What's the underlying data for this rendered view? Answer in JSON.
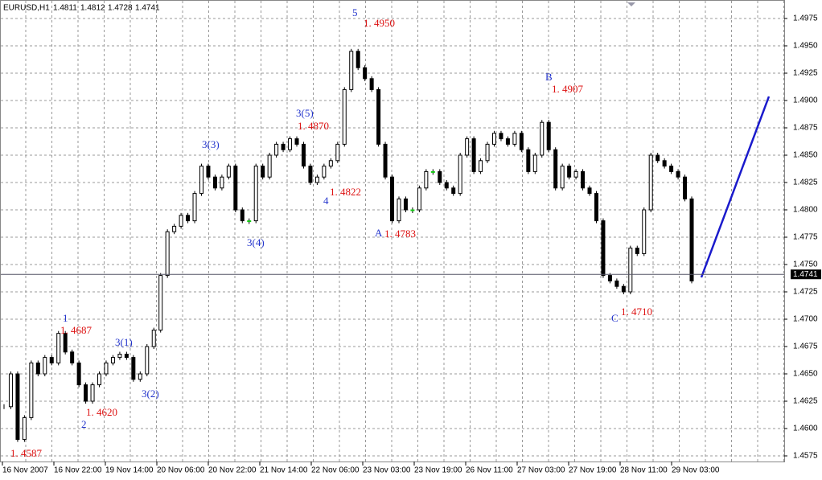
{
  "chart_data": {
    "type": "candlestick",
    "title": "EURUSD,H1",
    "ohlc": [
      1.4811,
      1.4812,
      1.4728,
      1.4741
    ],
    "values": [
      1.462,
      1.465,
      1.459,
      1.461,
      1.466,
      1.465,
      1.4665,
      1.466,
      1.4687,
      1.467,
      1.466,
      1.464,
      1.4625,
      1.464,
      1.465,
      1.466,
      1.4665,
      1.4668,
      1.4665,
      1.4645,
      1.465,
      1.4675,
      1.469,
      1.474,
      1.478,
      1.4785,
      1.4795,
      1.479,
      1.4815,
      1.484,
      1.483,
      1.482,
      1.483,
      1.484,
      1.48,
      1.479,
      1.479,
      1.484,
      1.483,
      1.485,
      1.486,
      1.4855,
      1.4865,
      1.486,
      1.484,
      1.4825,
      1.483,
      1.484,
      1.4845,
      1.486,
      1.491,
      1.4945,
      1.493,
      1.492,
      1.491,
      1.486,
      1.483,
      1.479,
      1.481,
      1.48,
      1.48,
      1.482,
      1.4835,
      1.4835,
      1.4825,
      1.482,
      1.4815,
      1.485,
      1.4865,
      1.4835,
      1.4845,
      1.486,
      1.487,
      1.4865,
      1.486,
      1.487,
      1.4855,
      1.4835,
      1.485,
      1.488,
      1.4855,
      1.482,
      1.484,
      1.483,
      1.4835,
      1.482,
      1.4815,
      1.479,
      1.474,
      1.4735,
      1.473,
      1.4725,
      1.4765,
      1.476,
      1.48,
      1.485,
      1.4845,
      1.484,
      1.4835,
      1.483,
      1.481,
      1.4735
    ],
    "x_labels": [
      "16 Nov 2007",
      "16 Nov 22:00",
      "19 Nov 14:00",
      "20 Nov 06:00",
      "20 Nov 22:00",
      "21 Nov 14:00",
      "22 Nov 06:00",
      "23 Nov 03:00",
      "23 Nov 19:00",
      "26 Nov 11:00",
      "27 Nov 03:00",
      "27 Nov 19:00",
      "28 Nov 11:00",
      "29 Nov 03:00"
    ],
    "ylim": [
      1.4575,
      1.4975
    ],
    "yticks": [
      1.4575,
      {
        "value": 1.46,
        "label": "1.4600"
      },
      1.4625,
      {
        "value": 1.465,
        "label": "1.4650"
      },
      1.4675,
      {
        "value": 1.47,
        "label": "1.4700"
      },
      1.4725,
      {
        "value": 1.475,
        "label": "1.4750"
      },
      1.4775,
      {
        "value": 1.48,
        "label": "1.4800"
      },
      1.4825,
      {
        "value": 1.485,
        "label": "1.4850"
      },
      1.4875,
      {
        "value": 1.49,
        "label": "1.4900"
      },
      1.4925,
      {
        "value": 1.495,
        "label": "1.4950"
      },
      1.4975
    ],
    "grid": true,
    "annotations": [
      {
        "text": "5",
        "color": "#2233cc"
      },
      {
        "text": "1. 4950",
        "color": "#dd1111"
      },
      {
        "text": "B",
        "color": "#2233cc"
      },
      {
        "text": "1. 4907",
        "color": "#dd1111"
      },
      {
        "text": "3(5)",
        "color": "#2233cc"
      },
      {
        "text": "1. 4870",
        "color": "#dd1111"
      },
      {
        "text": "3(3)",
        "color": "#2233cc"
      },
      {
        "text": "4",
        "color": "#2233cc"
      },
      {
        "text": "1. 4822",
        "color": "#dd1111"
      },
      {
        "text": "A",
        "color": "#2233cc"
      },
      {
        "text": "1. 4783",
        "color": "#dd1111"
      },
      {
        "text": "3(4)",
        "color": "#2233cc"
      },
      {
        "text": "1",
        "color": "#2233cc"
      },
      {
        "text": "1. 4687",
        "color": "#dd1111"
      },
      {
        "text": "3(1)",
        "color": "#2233cc"
      },
      {
        "text": "3(2)",
        "color": "#2233cc"
      },
      {
        "text": "1. 4620",
        "color": "#dd1111"
      },
      {
        "text": "2",
        "color": "#2233cc"
      },
      {
        "text": "1. 4587",
        "color": "#dd1111"
      },
      {
        "text": "C",
        "color": "#2233cc"
      },
      {
        "text": "1. 4710",
        "color": "#dd1111"
      }
    ]
  }
}
